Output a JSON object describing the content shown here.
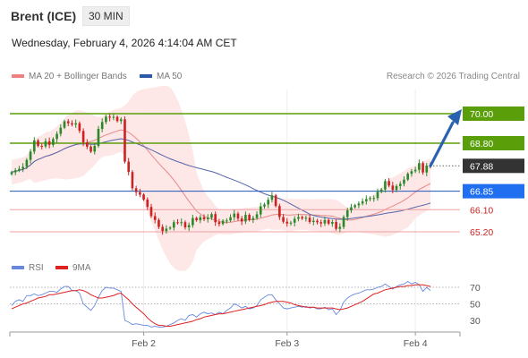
{
  "header": {
    "title": "Brent (ICE)",
    "interval": "30 MIN",
    "datetime": "Wednesday, February 4, 2026 4:14:04 AM CET"
  },
  "legend": {
    "ma20": "MA 20 + Bollinger Bands",
    "ma50": "MA 50",
    "rsi": "RSI",
    "ma9": "9MA",
    "copyright": "Research © 2026 Trading Central"
  },
  "colors": {
    "resistance": "#5a9e0a",
    "support": "#2255bb",
    "pivot": "#f0a0a0",
    "current": "#333333",
    "candle_up": "#2a8a2a",
    "candle_down": "#cc2222",
    "bollinger_fill": "#fde4e4",
    "ma20": "#e88a8a",
    "ma50": "#5566aa",
    "rsi": "#6688dd",
    "rsi_ma": "#dd2222",
    "arrow": "#2a62b0"
  },
  "chart_data": [
    {
      "type": "candlestick",
      "title": "Brent (ICE)",
      "ylim": [
        64.5,
        70.5
      ],
      "x_ticks": [
        "Feb 2",
        "Feb 3",
        "Feb 4"
      ],
      "current_price": 67.88,
      "levels": [
        {
          "value": 70.0,
          "label": "70.00",
          "kind": "resistance"
        },
        {
          "value": 68.8,
          "label": "68.80",
          "kind": "resistance"
        },
        {
          "value": 67.88,
          "label": "67.88",
          "kind": "current"
        },
        {
          "value": 66.85,
          "label": "66.85",
          "kind": "support"
        },
        {
          "value": 66.1,
          "label": "66.10",
          "kind": "pivot"
        },
        {
          "value": 65.2,
          "label": "65.20",
          "kind": "pivot"
        }
      ],
      "forecast_arrow": {
        "from": 67.88,
        "to": 70.0
      },
      "close": [
        67.62,
        67.7,
        67.76,
        67.84,
        68.12,
        68.46,
        68.91,
        68.69,
        68.67,
        68.88,
        68.73,
        68.97,
        69.18,
        69.43,
        69.69,
        69.61,
        69.56,
        69.61,
        69.3,
        68.83,
        68.66,
        68.46,
        68.69,
        69.38,
        69.66,
        69.88,
        69.84,
        69.87,
        69.7,
        69.77,
        68.05,
        67.63,
        66.97,
        66.81,
        66.71,
        66.51,
        66.21,
        65.84,
        65.68,
        65.4,
        65.23,
        65.33,
        65.37,
        65.59,
        65.57,
        65.59,
        65.38,
        65.47,
        65.76,
        65.67,
        65.79,
        65.71,
        65.77,
        65.92,
        65.59,
        65.52,
        65.65,
        65.66,
        65.79,
        65.94,
        65.74,
        65.62,
        65.89,
        65.68,
        65.76,
        65.91,
        66.23,
        66.31,
        66.5,
        66.68,
        66.25,
        65.8,
        65.61,
        65.54,
        65.57,
        65.73,
        65.8,
        65.74,
        65.77,
        65.6,
        65.65,
        65.59,
        65.54,
        65.68,
        65.53,
        65.6,
        65.32,
        65.4,
        65.8,
        66.07,
        66.2,
        66.28,
        66.35,
        66.44,
        66.53,
        66.57,
        66.57,
        66.82,
        66.92,
        67.26,
        67.08,
        66.9,
        67.06,
        67.15,
        67.32,
        67.56,
        67.66,
        67.72,
        67.99,
        67.61,
        67.89,
        67.88
      ],
      "ma20_end": 67.37,
      "ma50_end": 66.87
    },
    {
      "type": "line",
      "title": "RSI",
      "ylim": [
        15,
        85
      ],
      "y_ticks": [
        70,
        50,
        30
      ],
      "x_ticks": [
        "Feb 2",
        "Feb 3",
        "Feb 4"
      ],
      "series": [
        {
          "name": "RSI",
          "values": [
            48,
            53,
            55,
            53,
            60,
            60,
            62,
            60,
            61,
            63,
            65,
            65,
            64,
            68,
            71,
            71,
            66,
            66,
            63,
            50,
            46,
            42,
            48,
            58,
            66,
            70,
            69,
            69,
            67,
            65,
            30,
            28,
            25,
            26,
            25,
            24,
            24,
            22,
            23,
            22,
            22,
            23,
            25,
            27,
            30,
            32,
            30,
            36,
            37,
            34,
            38,
            40,
            38,
            39,
            37,
            40,
            38,
            42,
            45,
            50,
            48,
            45,
            47,
            44,
            45,
            48,
            55,
            58,
            61,
            61,
            55,
            50,
            45,
            44,
            45,
            46,
            47,
            46,
            47,
            45,
            46,
            44,
            44,
            46,
            43,
            44,
            37,
            42,
            52,
            57,
            60,
            62,
            63,
            65,
            67,
            67,
            68,
            70,
            71,
            74,
            71,
            68,
            71,
            73,
            74,
            77,
            74,
            76,
            73,
            65,
            70,
            66
          ]
        },
        {
          "name": "9MA",
          "values": [
            44,
            46,
            48,
            50,
            51,
            53,
            55,
            57,
            58,
            59,
            61,
            61,
            62,
            63,
            64,
            65,
            66,
            66,
            67,
            66,
            64,
            61,
            59,
            57,
            57,
            58,
            59,
            60,
            62,
            63,
            59,
            55,
            50,
            46,
            42,
            38,
            33,
            29,
            26,
            24,
            24,
            23,
            23,
            24,
            25,
            26,
            27,
            28,
            29,
            31,
            32,
            34,
            35,
            36,
            37,
            38,
            38,
            39,
            40,
            41,
            42,
            43,
            44,
            45,
            46,
            47,
            48,
            49,
            51,
            52,
            53,
            53,
            53,
            52,
            51,
            49,
            48,
            47,
            46,
            46,
            46,
            45,
            45,
            45,
            45,
            45,
            44,
            43,
            44,
            45,
            47,
            49,
            51,
            53,
            56,
            59,
            62,
            63,
            65,
            67,
            68,
            69,
            70,
            71,
            71,
            72,
            72,
            73,
            73,
            73,
            72,
            71
          ]
        }
      ]
    }
  ]
}
